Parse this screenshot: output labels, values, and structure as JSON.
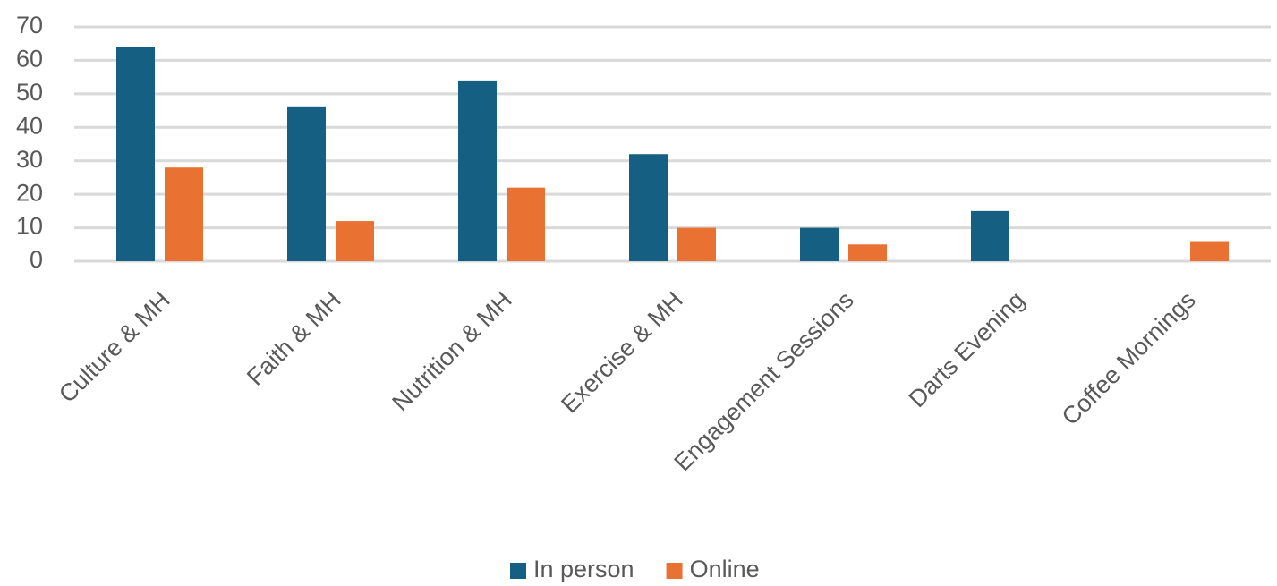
{
  "chart_data": {
    "type": "bar",
    "categories": [
      "Culture & MH",
      "Faith & MH",
      "Nutrition & MH",
      "Exercise & MH",
      "Engagement Sessions",
      "Darts Evening",
      "Coffee Mornings"
    ],
    "series": [
      {
        "name": "In person",
        "color": "#156082",
        "values": [
          64,
          46,
          54,
          32,
          10,
          15,
          0
        ]
      },
      {
        "name": "Online",
        "color": "#e97132",
        "values": [
          28,
          12,
          22,
          10,
          5,
          0,
          6
        ]
      }
    ],
    "ylim": [
      0,
      70
    ],
    "yticks": [
      0,
      10,
      20,
      30,
      40,
      50,
      60,
      70
    ],
    "grid": true,
    "legend": "bottom"
  }
}
